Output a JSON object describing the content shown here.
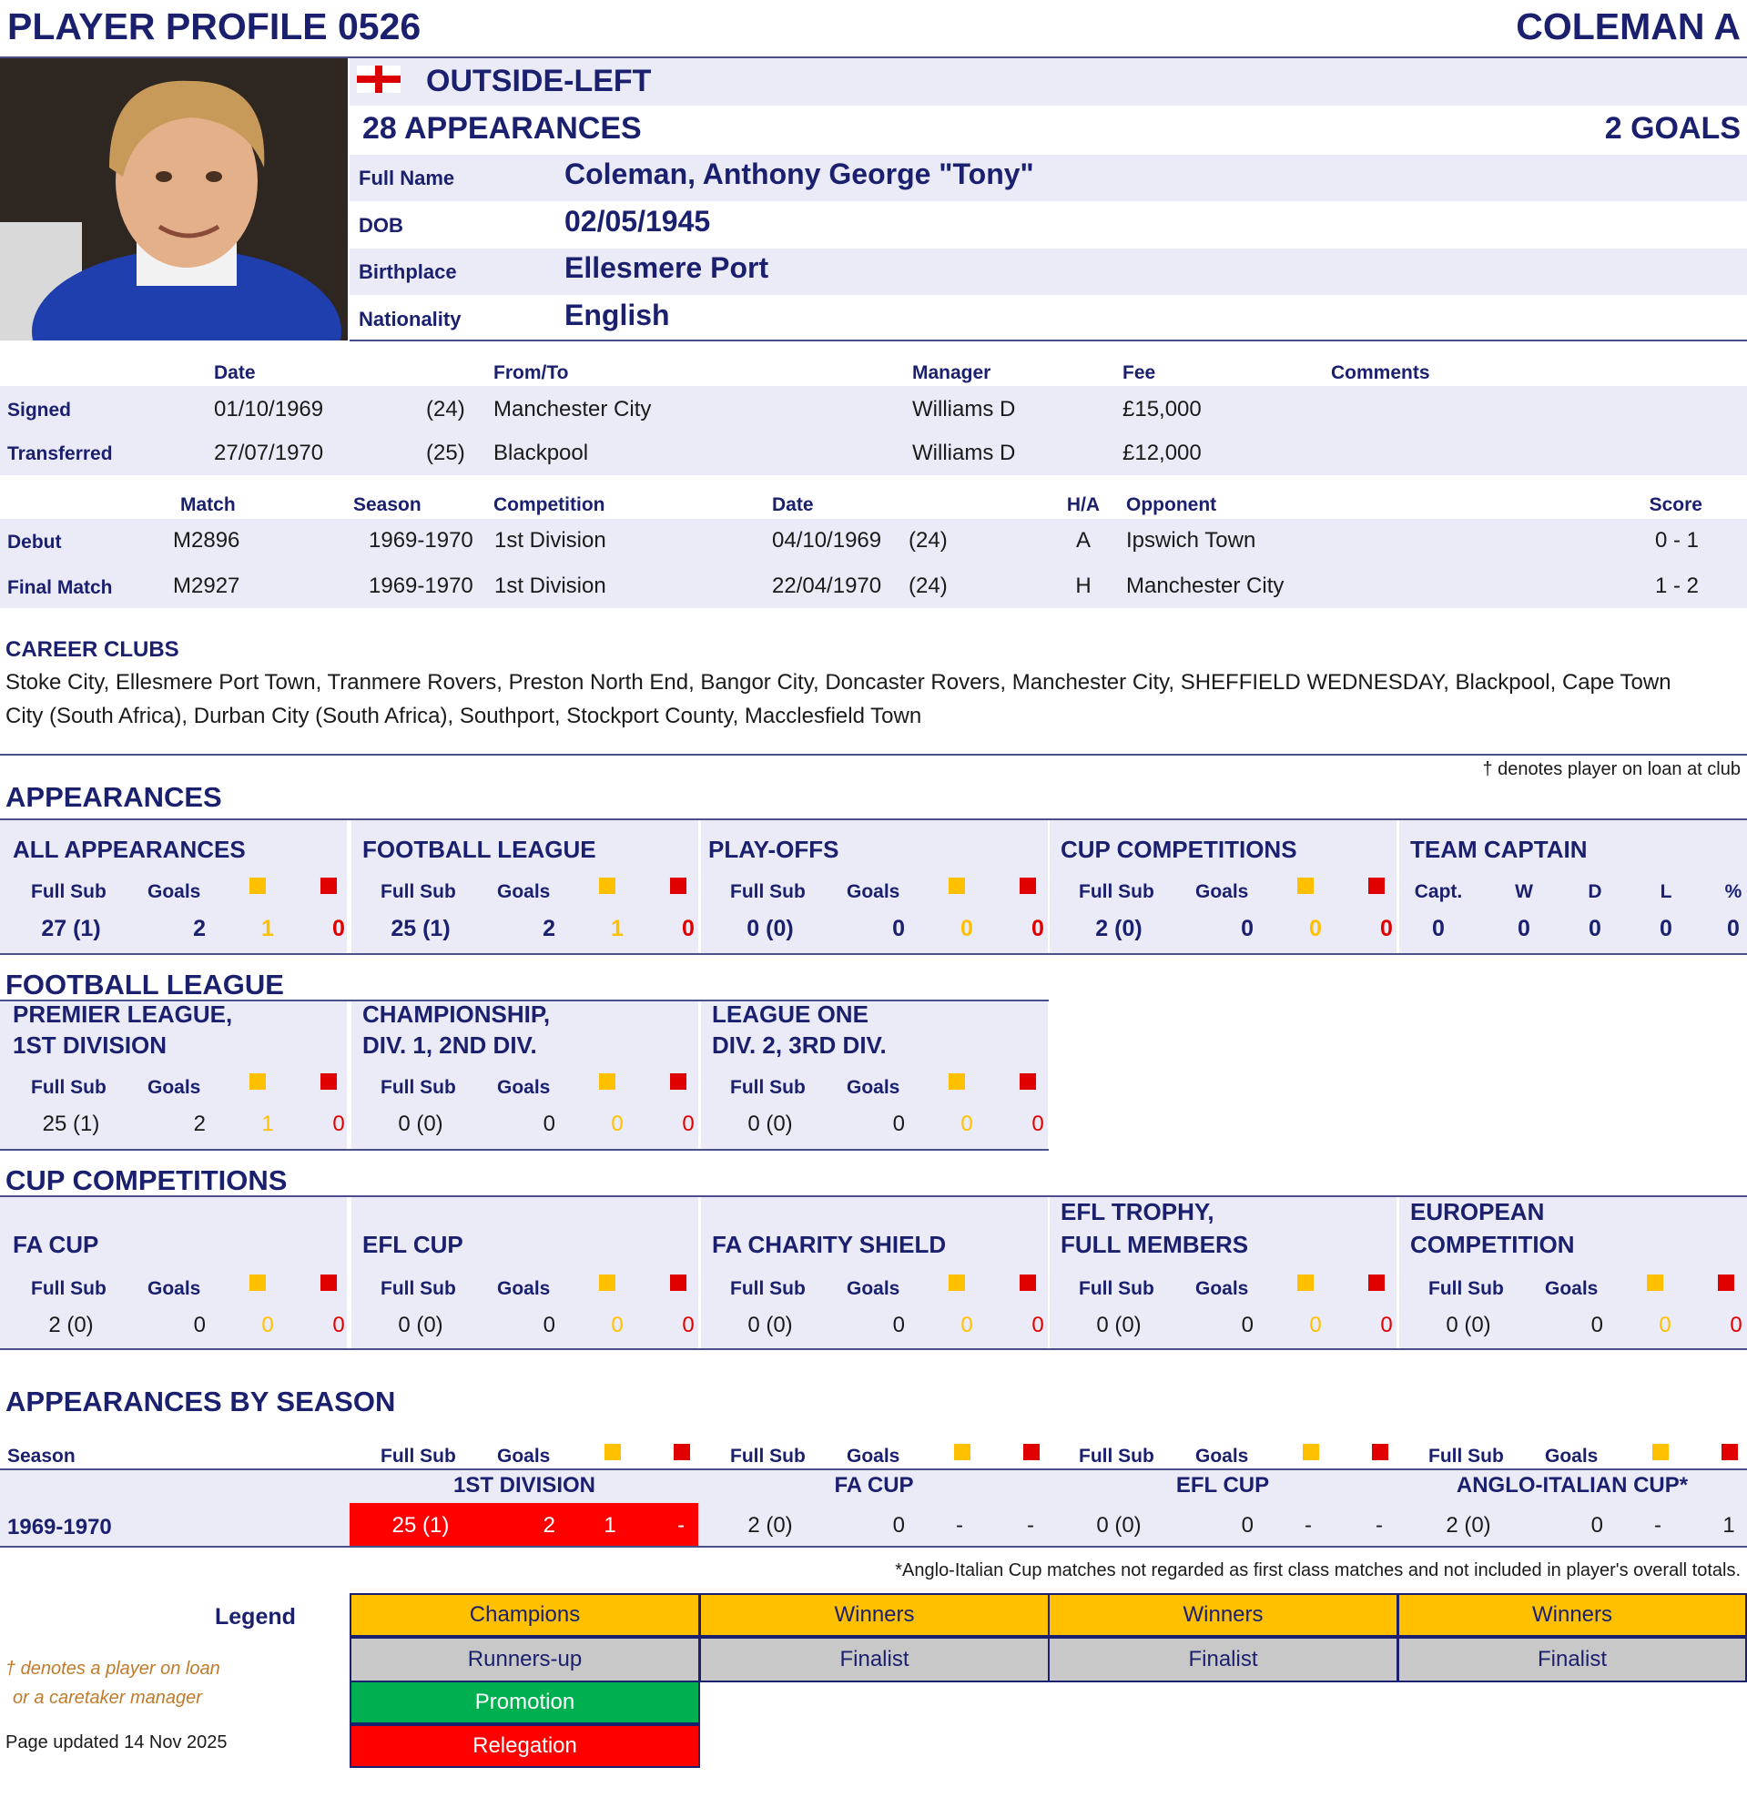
{
  "header": {
    "profile": "PLAYER PROFILE 0526",
    "name": "COLEMAN A"
  },
  "player": {
    "position": "OUTSIDE-LEFT",
    "appearances": "28 APPEARANCES",
    "goals": "2 GOALS",
    "fields": [
      {
        "label": "Full Name",
        "value": "Coleman, Anthony George \"Tony\""
      },
      {
        "label": "DOB",
        "value": "02/05/1945"
      },
      {
        "label": "Birthplace",
        "value": "Ellesmere Port"
      },
      {
        "label": "Nationality",
        "value": "English"
      }
    ]
  },
  "transfers": {
    "headers": [
      "Date",
      "From/To",
      "Manager",
      "Fee",
      "Comments"
    ],
    "rows": [
      {
        "type": "Signed",
        "date": "01/10/1969",
        "age": "(24)",
        "club": "Manchester City",
        "manager": "Williams D",
        "fee": "£15,000",
        "comments": ""
      },
      {
        "type": "Transferred",
        "date": "27/07/1970",
        "age": "(25)",
        "club": "Blackpool",
        "manager": "Williams D",
        "fee": "£12,000",
        "comments": ""
      }
    ]
  },
  "matches": {
    "headers": [
      "Match",
      "Season",
      "Competition",
      "Date",
      "H/A",
      "Opponent",
      "Score"
    ],
    "rows": [
      {
        "type": "Debut",
        "match": "M2896",
        "season": "1969-1970",
        "competition": "1st Division",
        "date": "04/10/1969",
        "age": "(24)",
        "ha": "A",
        "opponent": "Ipswich Town",
        "score": "0 - 1"
      },
      {
        "type": "Final Match",
        "match": "M2927",
        "season": "1969-1970",
        "competition": "1st Division",
        "date": "22/04/1970",
        "age": "(24)",
        "ha": "H",
        "opponent": "Manchester City",
        "score": "1 - 2"
      }
    ]
  },
  "career": {
    "title": "CAREER CLUBS",
    "line1": "Stoke City, Ellesmere Port Town, Tranmere Rovers, Preston North End, Bangor City, Doncaster Rovers, Manchester City, SHEFFIELD WEDNESDAY, Blackpool, Cape Town",
    "line2": "City (South Africa), Durban City (South Africa), Southport, Stockport County, Macclesfield Town"
  },
  "loan_note": "† denotes player on loan at club",
  "labels": {
    "full_sub": "Full Sub",
    "goals": "Goals"
  },
  "appearances": {
    "title": "APPEARANCES",
    "blocks": [
      {
        "title": "ALL APPEARANCES",
        "app": "27 (1)",
        "goals": "2",
        "yellow": "1",
        "red": "0"
      },
      {
        "title": "FOOTBALL LEAGUE",
        "app": "25 (1)",
        "goals": "2",
        "yellow": "1",
        "red": "0"
      },
      {
        "title": "PLAY-OFFS",
        "app": "0 (0)",
        "goals": "0",
        "yellow": "0",
        "red": "0"
      },
      {
        "title": "CUP COMPETITIONS",
        "app": "2 (0)",
        "goals": "0",
        "yellow": "0",
        "red": "0"
      }
    ],
    "captain": {
      "title": "TEAM CAPTAIN",
      "headers": [
        "Capt.",
        "W",
        "D",
        "L",
        "%"
      ],
      "values": [
        "0",
        "0",
        "0",
        "0",
        "0"
      ]
    }
  },
  "football_league": {
    "title": "FOOTBALL LEAGUE",
    "blocks": [
      {
        "title1": "PREMIER LEAGUE,",
        "title2": "1ST DIVISION",
        "app": "25 (1)",
        "goals": "2",
        "yellow": "1",
        "red": "0"
      },
      {
        "title1": "CHAMPIONSHIP,",
        "title2": "DIV. 1, 2ND DIV.",
        "app": "0 (0)",
        "goals": "0",
        "yellow": "0",
        "red": "0"
      },
      {
        "title1": "LEAGUE ONE",
        "title2": "DIV. 2, 3RD DIV.",
        "app": "0 (0)",
        "goals": "0",
        "yellow": "0",
        "red": "0"
      }
    ]
  },
  "cups": {
    "title": "CUP COMPETITIONS",
    "blocks": [
      {
        "title1": "",
        "title2": "FA CUP",
        "app": "2 (0)",
        "goals": "0",
        "yellow": "0",
        "red": "0"
      },
      {
        "title1": "",
        "title2": "EFL CUP",
        "app": "0 (0)",
        "goals": "0",
        "yellow": "0",
        "red": "0"
      },
      {
        "title1": "",
        "title2": "FA CHARITY SHIELD",
        "app": "0 (0)",
        "goals": "0",
        "yellow": "0",
        "red": "0"
      },
      {
        "title1": "EFL TROPHY,",
        "title2": "FULL MEMBERS",
        "app": "0 (0)",
        "goals": "0",
        "yellow": "0",
        "red": "0"
      },
      {
        "title1": "EUROPEAN",
        "title2": "COMPETITION",
        "app": "0 (0)",
        "goals": "0",
        "yellow": "0",
        "red": "0"
      }
    ]
  },
  "by_season": {
    "title": "APPEARANCES BY SEASON",
    "season_label": "Season",
    "competitions": [
      "1ST DIVISION",
      "FA CUP",
      "EFL CUP",
      "ANGLO-ITALIAN CUP*"
    ],
    "rows": [
      {
        "season": "1969-1970",
        "cells": [
          {
            "app": "25 (1)",
            "goals": "2",
            "yellow": "1",
            "red": "-",
            "highlight": "relegation"
          },
          {
            "app": "2 (0)",
            "goals": "0",
            "yellow": "-",
            "red": "-"
          },
          {
            "app": "0 (0)",
            "goals": "0",
            "yellow": "-",
            "red": "-"
          },
          {
            "app": "2 (0)",
            "goals": "0",
            "yellow": "-",
            "red": "1"
          }
        ]
      }
    ],
    "footnote": "*Anglo-Italian Cup matches not regarded as first class matches and not included in player's overall totals."
  },
  "legend": {
    "title": "Legend",
    "row1": [
      "Champions",
      "Winners",
      "Winners",
      "Winners"
    ],
    "row2": [
      "Runners-up",
      "Finalist",
      "Finalist",
      "Finalist"
    ],
    "promotion": "Promotion",
    "relegation": "Relegation",
    "note1": "† denotes a player on loan",
    "note2": "or a caretaker manager",
    "updated": "Page updated 14 Nov 2025"
  },
  "colors": {
    "navy": "#1a1f6e",
    "lavender": "#ebebf7",
    "yellow": "#ffc000",
    "red": "#e00000",
    "green": "#00b050",
    "relegation": "#ff0000",
    "grey": "#c8c8c8"
  }
}
